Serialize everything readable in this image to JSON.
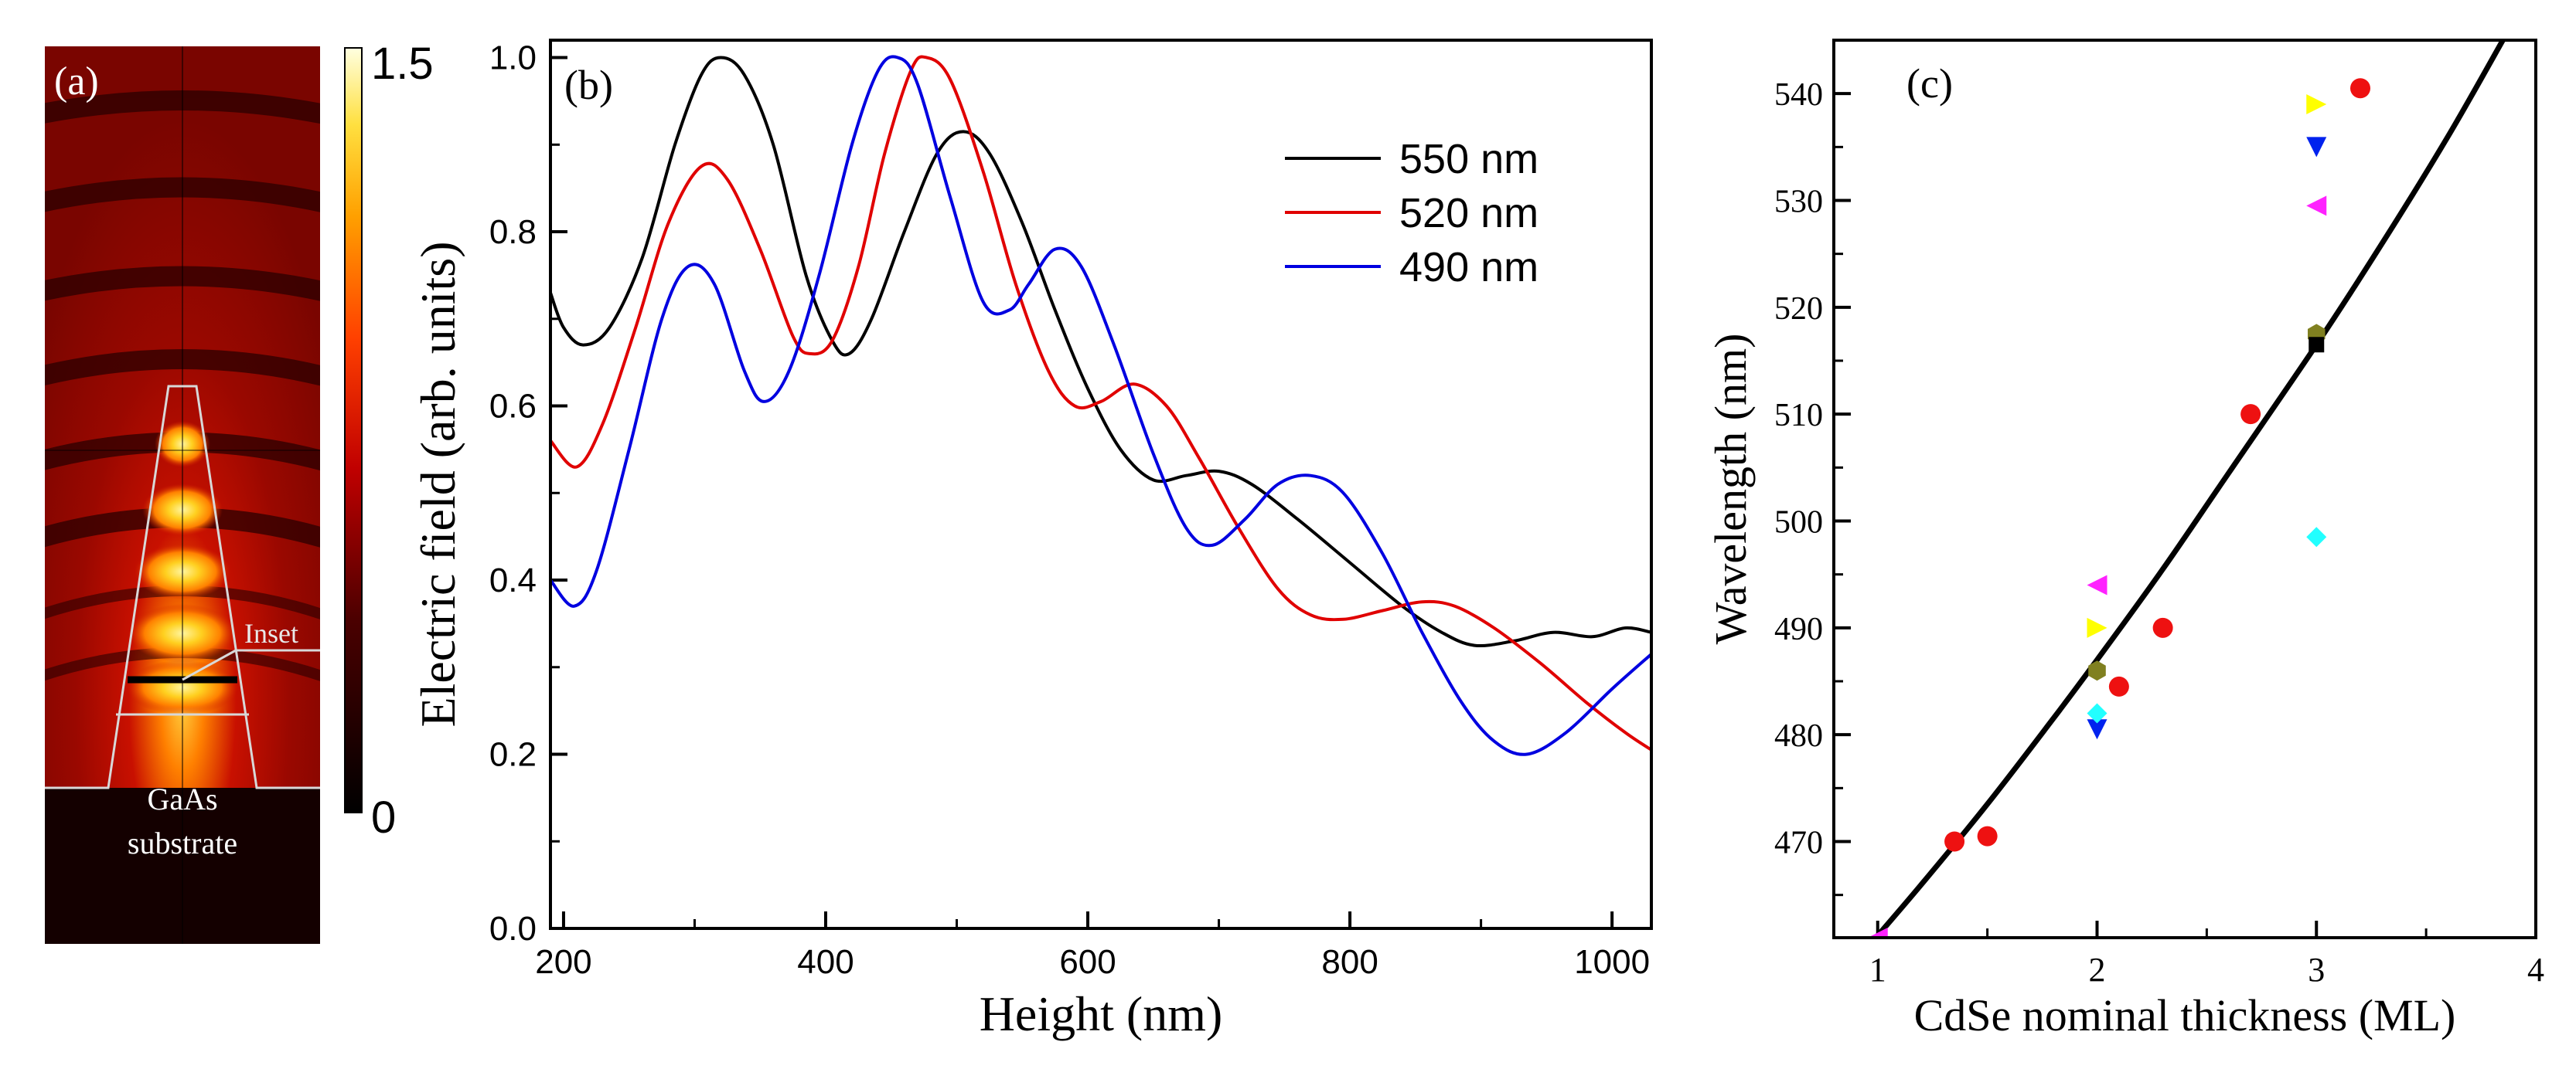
{
  "colors": {
    "black": "#000000",
    "red": "#e00000",
    "blue": "#0000e0",
    "dot_red": "#ee1111",
    "yellow": "#ffff00",
    "magenta": "#ff22ff",
    "cyan": "#22ffff",
    "navy": "#0022ee",
    "olive": "#808020",
    "grid_line": "#ffffff"
  },
  "chart_data": [
    {
      "panel": "(a)",
      "type": "heatmap",
      "title": "",
      "colorbar": {
        "min_label": "0",
        "max_label": "1.5",
        "min": 0,
        "max": 1.5
      },
      "annotations": {
        "inset": "Inset",
        "substrate_line1": "GaAs",
        "substrate_line2": "substrate"
      }
    },
    {
      "panel": "(b)",
      "type": "line",
      "xlabel": "Height (nm)",
      "ylabel": "Electric field (arb. units)",
      "xlim": [
        190,
        1030
      ],
      "ylim": [
        0,
        1.02
      ],
      "xticks": [
        200,
        400,
        600,
        800,
        1000
      ],
      "yticks": [
        0.0,
        0.2,
        0.4,
        0.6,
        0.8,
        1.0
      ],
      "xtick_labels": [
        "200",
        "400",
        "600",
        "800",
        "1000"
      ],
      "ytick_labels": [
        "0.0",
        "0.2",
        "0.4",
        "0.6",
        "0.8",
        "1.0"
      ],
      "legend": [
        "550 nm",
        "520 nm",
        "490 nm"
      ],
      "legend_position": "top-right",
      "series": [
        {
          "name": "550 nm",
          "color": "#000000",
          "points": [
            [
              190,
              0.73
            ],
            [
              200,
              0.69
            ],
            [
              215,
              0.67
            ],
            [
              235,
              0.69
            ],
            [
              260,
              0.77
            ],
            [
              285,
              0.9
            ],
            [
              305,
              0.98
            ],
            [
              320,
              1.0
            ],
            [
              338,
              0.98
            ],
            [
              360,
              0.9
            ],
            [
              385,
              0.75
            ],
            [
              405,
              0.675
            ],
            [
              418,
              0.66
            ],
            [
              435,
              0.7
            ],
            [
              460,
              0.8
            ],
            [
              485,
              0.89
            ],
            [
              505,
              0.915
            ],
            [
              525,
              0.89
            ],
            [
              550,
              0.81
            ],
            [
              575,
              0.71
            ],
            [
              600,
              0.62
            ],
            [
              625,
              0.55
            ],
            [
              650,
              0.515
            ],
            [
              675,
              0.52
            ],
            [
              700,
              0.525
            ],
            [
              725,
              0.51
            ],
            [
              760,
              0.47
            ],
            [
              800,
              0.42
            ],
            [
              840,
              0.37
            ],
            [
              870,
              0.34
            ],
            [
              895,
              0.325
            ],
            [
              925,
              0.33
            ],
            [
              955,
              0.34
            ],
            [
              985,
              0.335
            ],
            [
              1010,
              0.345
            ],
            [
              1030,
              0.34
            ]
          ]
        },
        {
          "name": "520 nm",
          "color": "#e00000",
          "points": [
            [
              190,
              0.56
            ],
            [
              210,
              0.53
            ],
            [
              230,
              0.58
            ],
            [
              255,
              0.69
            ],
            [
              280,
              0.81
            ],
            [
              305,
              0.875
            ],
            [
              325,
              0.86
            ],
            [
              350,
              0.78
            ],
            [
              375,
              0.68
            ],
            [
              388,
              0.66
            ],
            [
              405,
              0.675
            ],
            [
              425,
              0.76
            ],
            [
              445,
              0.89
            ],
            [
              465,
              0.985
            ],
            [
              477,
              1.0
            ],
            [
              495,
              0.975
            ],
            [
              520,
              0.87
            ],
            [
              545,
              0.74
            ],
            [
              570,
              0.64
            ],
            [
              590,
              0.6
            ],
            [
              610,
              0.605
            ],
            [
              635,
              0.625
            ],
            [
              660,
              0.6
            ],
            [
              685,
              0.54
            ],
            [
              715,
              0.46
            ],
            [
              745,
              0.39
            ],
            [
              770,
              0.36
            ],
            [
              795,
              0.355
            ],
            [
              825,
              0.365
            ],
            [
              855,
              0.375
            ],
            [
              880,
              0.37
            ],
            [
              910,
              0.345
            ],
            [
              945,
              0.305
            ],
            [
              980,
              0.26
            ],
            [
              1010,
              0.225
            ],
            [
              1030,
              0.205
            ]
          ]
        },
        {
          "name": "490 nm",
          "color": "#0000e0",
          "points": [
            [
              190,
              0.4
            ],
            [
              208,
              0.37
            ],
            [
              225,
              0.41
            ],
            [
              250,
              0.55
            ],
            [
              275,
              0.7
            ],
            [
              295,
              0.76
            ],
            [
              315,
              0.74
            ],
            [
              338,
              0.64
            ],
            [
              353,
              0.605
            ],
            [
              372,
              0.64
            ],
            [
              395,
              0.75
            ],
            [
              420,
              0.9
            ],
            [
              440,
              0.985
            ],
            [
              455,
              1.0
            ],
            [
              470,
              0.97
            ],
            [
              495,
              0.84
            ],
            [
              520,
              0.72
            ],
            [
              540,
              0.71
            ],
            [
              555,
              0.74
            ],
            [
              575,
              0.78
            ],
            [
              595,
              0.76
            ],
            [
              620,
              0.67
            ],
            [
              650,
              0.545
            ],
            [
              675,
              0.46
            ],
            [
              695,
              0.44
            ],
            [
              720,
              0.47
            ],
            [
              745,
              0.51
            ],
            [
              770,
              0.52
            ],
            [
              795,
              0.5
            ],
            [
              825,
              0.43
            ],
            [
              855,
              0.34
            ],
            [
              885,
              0.26
            ],
            [
              910,
              0.215
            ],
            [
              935,
              0.2
            ],
            [
              965,
              0.225
            ],
            [
              1000,
              0.275
            ],
            [
              1030,
              0.315
            ]
          ]
        }
      ]
    },
    {
      "panel": "(c)",
      "type": "scatter",
      "xlabel": "CdSe nominal thickness (ML)",
      "ylabel": "Wavelength (nm)",
      "xlim": [
        0.8,
        4.0
      ],
      "ylim": [
        461,
        545
      ],
      "xticks": [
        1,
        2,
        3,
        4
      ],
      "yticks": [
        470,
        480,
        490,
        500,
        510,
        520,
        530,
        540
      ],
      "xtick_labels": [
        "1",
        "2",
        "3",
        "4"
      ],
      "ytick_labels": [
        "470",
        "480",
        "490",
        "500",
        "510",
        "520",
        "530",
        "540"
      ],
      "fit_curve": [
        [
          0.95,
          460
        ],
        [
          1.2,
          466
        ],
        [
          1.5,
          473.5
        ],
        [
          1.8,
          481.5
        ],
        [
          2.0,
          487
        ],
        [
          2.3,
          495.5
        ],
        [
          2.6,
          504.5
        ],
        [
          3.0,
          516.5
        ],
        [
          3.3,
          526
        ],
        [
          3.6,
          536
        ],
        [
          3.85,
          545
        ]
      ],
      "series": [
        {
          "name": "red circles",
          "marker": "circle",
          "color": "#ee1111",
          "points": [
            [
              1.35,
              470
            ],
            [
              1.5,
              470.5
            ],
            [
              2.1,
              484.5
            ],
            [
              2.3,
              490
            ],
            [
              2.7,
              510
            ],
            [
              3.2,
              540.5
            ]
          ]
        },
        {
          "name": "yellow right triangles",
          "marker": "tri-right",
          "color": "#ffff00",
          "points": [
            [
              2.0,
              490
            ],
            [
              3.0,
              539
            ]
          ]
        },
        {
          "name": "magenta left triangles",
          "marker": "tri-left",
          "color": "#ff22ff",
          "points": [
            [
              2.0,
              494
            ],
            [
              3.0,
              529.5
            ],
            [
              1.0,
              461
            ]
          ]
        },
        {
          "name": "blue down triangles",
          "marker": "tri-down",
          "color": "#0022ee",
          "points": [
            [
              2.0,
              480.5
            ],
            [
              3.0,
              535
            ]
          ]
        },
        {
          "name": "cyan diamonds",
          "marker": "diamond",
          "color": "#22ffff",
          "points": [
            [
              2.0,
              482
            ],
            [
              3.0,
              498.5
            ]
          ]
        },
        {
          "name": "olive hexagons",
          "marker": "hexagon",
          "color": "#808020",
          "points": [
            [
              2.0,
              486
            ],
            [
              3.0,
              517.5
            ]
          ]
        },
        {
          "name": "black squares",
          "marker": "square",
          "color": "#000000",
          "points": [
            [
              3.0,
              516.5
            ]
          ]
        }
      ]
    }
  ]
}
